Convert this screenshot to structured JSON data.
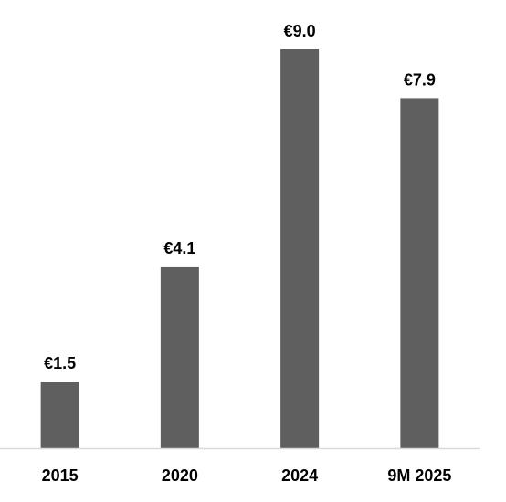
{
  "chart_data": {
    "type": "bar",
    "title": "",
    "xlabel": "",
    "ylabel": "",
    "categories": [
      "2015",
      "2020",
      "2024",
      "9M 2025"
    ],
    "values": [
      1.5,
      4.1,
      9.0,
      7.9
    ],
    "data_labels": [
      "€1.5",
      "€4.1",
      "€9.0",
      "€7.9"
    ],
    "ylim": [
      0,
      9.0
    ],
    "grid": false,
    "legend": "none",
    "colors": {
      "bar": "#5f5f5f",
      "axis": "#d9d9d9",
      "text": "#000000"
    }
  }
}
